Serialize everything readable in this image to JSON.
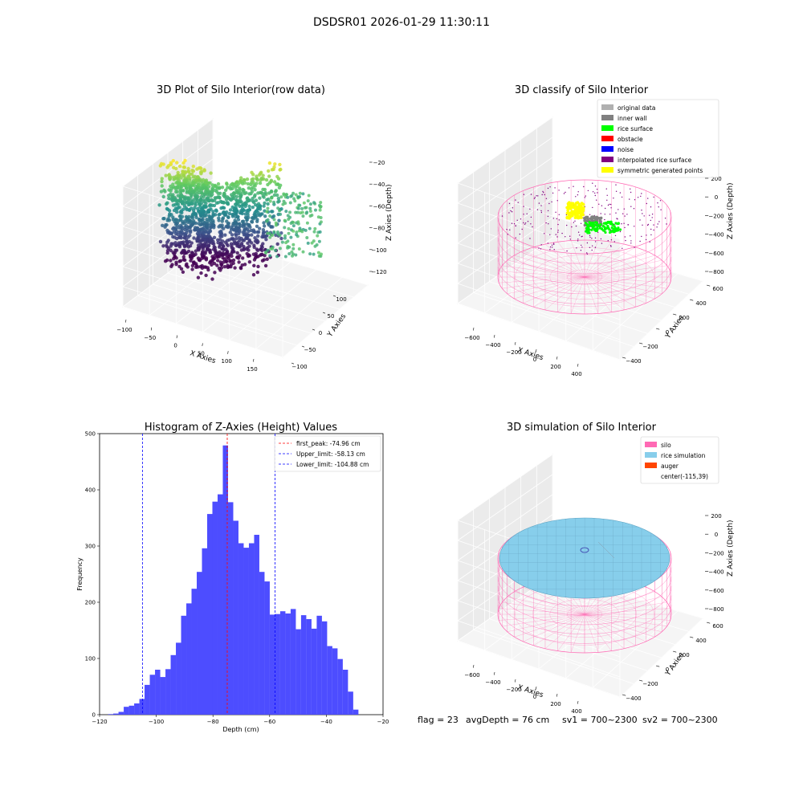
{
  "suptitle": "DSDSR01 2026-01-29 11:30:11",
  "colors": {
    "hist_bar": "#4d4dff",
    "first_peak": "#ff0000",
    "limit": "#0000ff",
    "silo": "#ff69b4",
    "rice": "#87ceeb",
    "auger": "#ff4500"
  },
  "chart_data": [
    {
      "type": "scatter",
      "title": "3D Plot of Silo Interior(row data)",
      "xlabel": "X Axies",
      "ylabel": "Y Axies",
      "zlabel": "Z Axies (Depth)",
      "x_ticks": [
        "−100",
        "−50",
        "0",
        "50",
        "100",
        "150"
      ],
      "y_ticks": [
        "−100",
        "−50",
        "0",
        "50",
        "100"
      ],
      "z_ticks": [
        "−20",
        "−40",
        "−60",
        "−80",
        "−100",
        "−120"
      ],
      "xlim": [
        -100,
        170
      ],
      "ylim": [
        -100,
        120
      ],
      "zlim": [
        -125,
        -15
      ],
      "colormap": "viridis"
    },
    {
      "type": "scatter",
      "title": "3D classify of Silo Interior",
      "xlabel": "X Axies",
      "ylabel": "Y Axies",
      "zlabel": "Z Axies (Depth)",
      "x_ticks": [
        "−600",
        "−400",
        "−200",
        "0",
        "200",
        "400"
      ],
      "y_ticks": [
        "−400",
        "−200",
        "0",
        "200",
        "400",
        "600"
      ],
      "z_ticks": [
        "200",
        "0",
        "−200",
        "−400",
        "−600",
        "−800"
      ],
      "legend": [
        {
          "label": "original data",
          "color": "#b0b0b0"
        },
        {
          "label": "inner wall",
          "color": "#808080"
        },
        {
          "label": "rice surface",
          "color": "#00ff00"
        },
        {
          "label": "obstacle",
          "color": "#ff0000"
        },
        {
          "label": "noise",
          "color": "#0000ff"
        },
        {
          "label": "interpolated rice surface",
          "color": "#800080"
        },
        {
          "label": "symmetric generated points",
          "color": "#ffff00"
        }
      ],
      "legend_loc": "upper right"
    },
    {
      "type": "bar",
      "title": "Histogram of Z-Axies (Height) Values",
      "xlabel": "Depth (cm)",
      "ylabel": "Frequency",
      "xlim": [
        -120,
        -20
      ],
      "ylim": [
        0,
        500
      ],
      "x_ticks": [
        -120,
        -100,
        -80,
        -60,
        -40,
        -20
      ],
      "y_ticks": [
        0,
        100,
        200,
        300,
        400,
        500
      ],
      "bin_start": -117,
      "bin_width": 1.84,
      "values": [
        1,
        2,
        5,
        14,
        16,
        20,
        28,
        53,
        71,
        80,
        67,
        81,
        106,
        128,
        176,
        198,
        224,
        254,
        296,
        357,
        379,
        392,
        479,
        378,
        345,
        305,
        297,
        305,
        320,
        254,
        237,
        178,
        179,
        184,
        180,
        188,
        152,
        177,
        170,
        153,
        176,
        166,
        122,
        118,
        99,
        80,
        41,
        9
      ],
      "lines": [
        {
          "label": "first_peak: -74.96 cm",
          "x": -74.96,
          "color": "#ff0000"
        },
        {
          "label": "Upper_limit: -58.13 cm",
          "x": -58.13,
          "color": "#0000ff"
        },
        {
          "label": "Lower_limit: -104.88 cm",
          "x": -104.88,
          "color": "#0000ff"
        }
      ],
      "legend_loc": "upper right"
    },
    {
      "type": "scatter",
      "title": "3D simulation of Silo Interior",
      "xlabel": "X Axies",
      "ylabel": "Y Axies",
      "zlabel": "Z Axies (Depth)",
      "x_ticks": [
        "−600",
        "−400",
        "−200",
        "0",
        "200",
        "400"
      ],
      "y_ticks": [
        "−400",
        "−200",
        "0",
        "200",
        "400",
        "600"
      ],
      "z_ticks": [
        "200",
        "0",
        "−200",
        "−400",
        "−600",
        "−800"
      ],
      "legend": [
        {
          "label": "silo",
          "color": "#ff69b4"
        },
        {
          "label": "rice simulation",
          "color": "#87ceeb"
        },
        {
          "label": "auger",
          "color": "#ff4500"
        },
        {
          "label": "center(-115,39)",
          "color": ""
        }
      ],
      "legend_loc": "upper right"
    }
  ],
  "status": {
    "flag": "flag = 23",
    "avg_depth": "avgDepth = 76 cm",
    "sv1": "sv1 = 700~2300",
    "sv2": "sv2 = 700~2300"
  }
}
